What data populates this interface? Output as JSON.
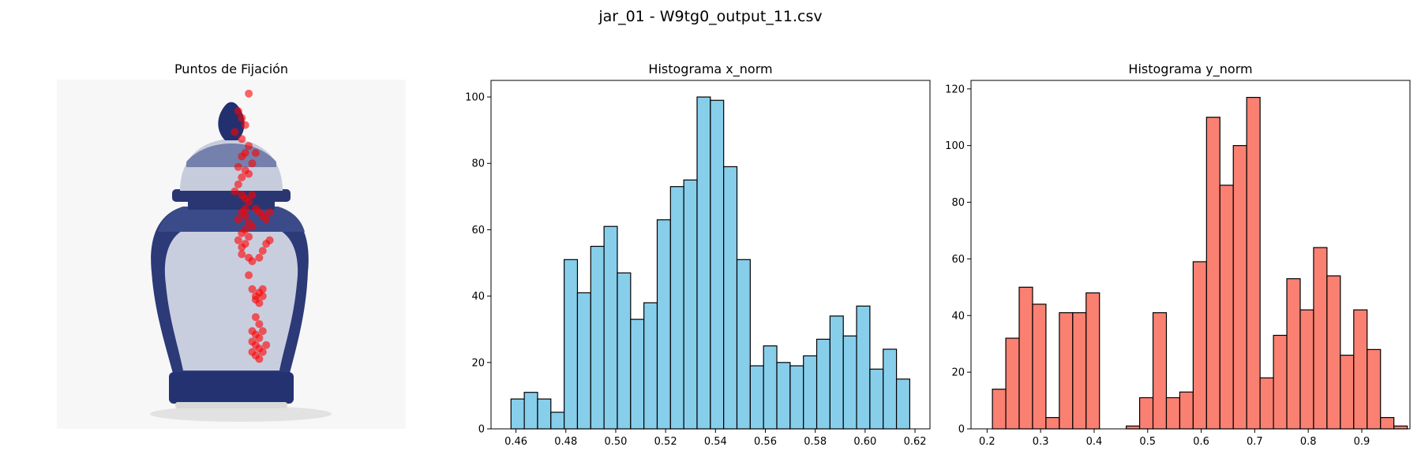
{
  "figure": {
    "suptitle": "jar_01 - W9tg0_output_11.csv"
  },
  "panels": {
    "image": {
      "title": "Puntos de Fijación"
    }
  },
  "chart_data": [
    {
      "type": "scatter",
      "title": "Puntos de Fijación",
      "background": "photo of blue-and-white porcelain ginger jar",
      "marker_color": "#ff0000",
      "axes_visible": false,
      "x": [
        0.55,
        0.52,
        0.53,
        0.54,
        0.51,
        0.53,
        0.55,
        0.54,
        0.53,
        0.52,
        0.54,
        0.55,
        0.56,
        0.57,
        0.53,
        0.52,
        0.51,
        0.53,
        0.54,
        0.55,
        0.56,
        0.54,
        0.53,
        0.52,
        0.54,
        0.55,
        0.56,
        0.57,
        0.58,
        0.59,
        0.6,
        0.61,
        0.54,
        0.53,
        0.52,
        0.53,
        0.54,
        0.55,
        0.53,
        0.55,
        0.56,
        0.58,
        0.59,
        0.6,
        0.61,
        0.55,
        0.56,
        0.57,
        0.58,
        0.59,
        0.57,
        0.58,
        0.59,
        0.57,
        0.58,
        0.56,
        0.57,
        0.58,
        0.59,
        0.56,
        0.57,
        0.58,
        0.56,
        0.57,
        0.58,
        0.59,
        0.6
      ],
      "y": [
        0.04,
        0.09,
        0.11,
        0.13,
        0.15,
        0.17,
        0.19,
        0.21,
        0.22,
        0.25,
        0.26,
        0.27,
        0.24,
        0.21,
        0.28,
        0.3,
        0.32,
        0.33,
        0.34,
        0.35,
        0.33,
        0.37,
        0.38,
        0.4,
        0.39,
        0.41,
        0.42,
        0.37,
        0.38,
        0.39,
        0.4,
        0.38,
        0.43,
        0.44,
        0.46,
        0.48,
        0.47,
        0.45,
        0.5,
        0.51,
        0.52,
        0.51,
        0.49,
        0.47,
        0.46,
        0.56,
        0.6,
        0.62,
        0.61,
        0.6,
        0.63,
        0.64,
        0.62,
        0.68,
        0.7,
        0.72,
        0.73,
        0.74,
        0.72,
        0.75,
        0.76,
        0.77,
        0.78,
        0.79,
        0.8,
        0.78,
        0.76
      ]
    },
    {
      "type": "bar",
      "title": "Histograma x_norm",
      "color": "#87CEEB",
      "edgecolor": "#000000",
      "bin_start": 0.458,
      "bin_width": 0.00533,
      "values": [
        9,
        11,
        9,
        5,
        51,
        41,
        55,
        61,
        47,
        33,
        38,
        63,
        73,
        75,
        100,
        99,
        79,
        51,
        19,
        25,
        20,
        19,
        22,
        27,
        34,
        28,
        37,
        18,
        24,
        15
      ],
      "xlim": [
        0.45,
        0.626
      ],
      "ylim": [
        0,
        105
      ],
      "xticks": [
        0.46,
        0.48,
        0.5,
        0.52,
        0.54,
        0.56,
        0.58,
        0.6,
        0.62
      ],
      "xtick_labels": [
        "0.46",
        "0.48",
        "0.50",
        "0.52",
        "0.54",
        "0.56",
        "0.58",
        "0.60",
        "0.62"
      ],
      "yticks": [
        0,
        20,
        40,
        60,
        80,
        100
      ],
      "ytick_labels": [
        "0",
        "20",
        "40",
        "60",
        "80",
        "100"
      ]
    },
    {
      "type": "bar",
      "title": "Histograma y_norm",
      "color": "#FA8072",
      "edgecolor": "#000000",
      "bin_start": 0.21,
      "bin_width": 0.025,
      "values": [
        14,
        32,
        50,
        44,
        4,
        41,
        41,
        48,
        0,
        0,
        1,
        11,
        41,
        11,
        13,
        59,
        110,
        86,
        100,
        117,
        18,
        33,
        53,
        42,
        64,
        54,
        26,
        42,
        28,
        4,
        1
      ],
      "xlim": [
        0.17,
        0.99
      ],
      "ylim": [
        0,
        123
      ],
      "xticks": [
        0.2,
        0.3,
        0.4,
        0.5,
        0.6,
        0.7,
        0.8,
        0.9
      ],
      "xtick_labels": [
        "0.2",
        "0.3",
        "0.4",
        "0.5",
        "0.6",
        "0.7",
        "0.8",
        "0.9"
      ],
      "yticks": [
        0,
        20,
        40,
        60,
        80,
        100,
        120
      ],
      "ytick_labels": [
        "0",
        "20",
        "40",
        "60",
        "80",
        "100",
        "120"
      ]
    }
  ]
}
